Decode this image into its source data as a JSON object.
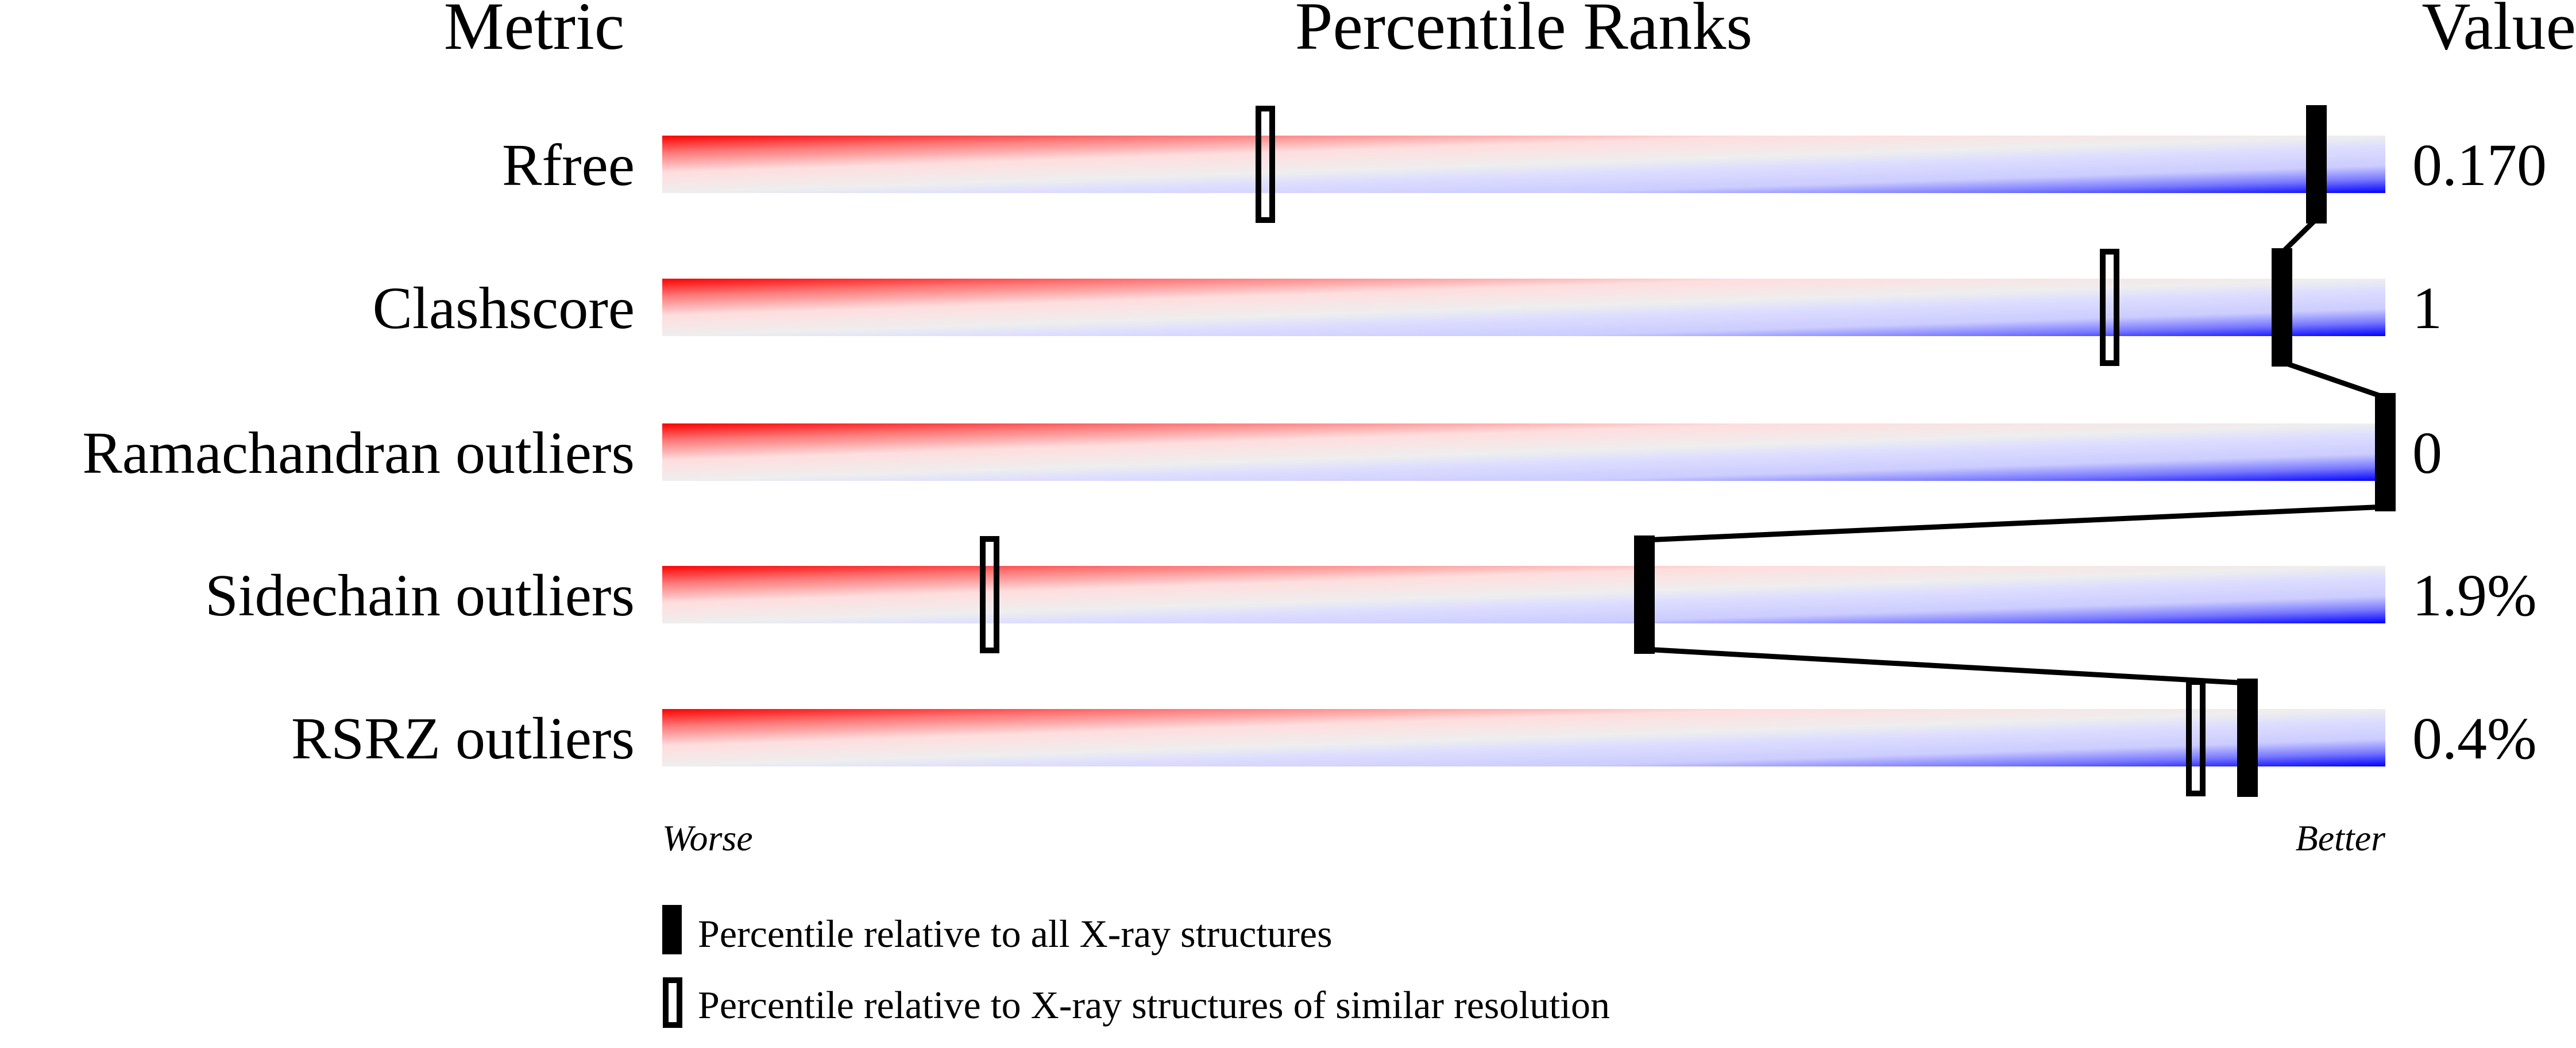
{
  "chart_data": {
    "type": "bar",
    "header": {
      "metric": "Metric",
      "title": "Percentile Ranks",
      "value": "Value"
    },
    "xlim": [
      0,
      100
    ],
    "axis_left_label": "Worse",
    "axis_right_label": "Better",
    "rows": [
      {
        "metric": "Rfree",
        "value": "0.170",
        "absolute_percentile": 96,
        "relative_percentile": 35
      },
      {
        "metric": "Clashscore",
        "value": "1",
        "absolute_percentile": 94,
        "relative_percentile": 84
      },
      {
        "metric": "Ramachandran outliers",
        "value": "0",
        "absolute_percentile": 100,
        "relative_percentile": null
      },
      {
        "metric": "Sidechain outliers",
        "value": "1.9%",
        "absolute_percentile": 57,
        "relative_percentile": 19
      },
      {
        "metric": "RSRZ outliers",
        "value": "0.4%",
        "absolute_percentile": 92,
        "relative_percentile": 89
      }
    ],
    "legend": [
      {
        "marker": "filled",
        "label": "Percentile relative to all X-ray structures"
      },
      {
        "marker": "open",
        "label": "Percentile relative to X-ray structures of similar resolution"
      }
    ],
    "legend_placement": "bottom",
    "colors": {
      "worse": "#ff0000",
      "middle": "#eeeeee",
      "better": "#0000ff",
      "marker": "#000000"
    }
  }
}
